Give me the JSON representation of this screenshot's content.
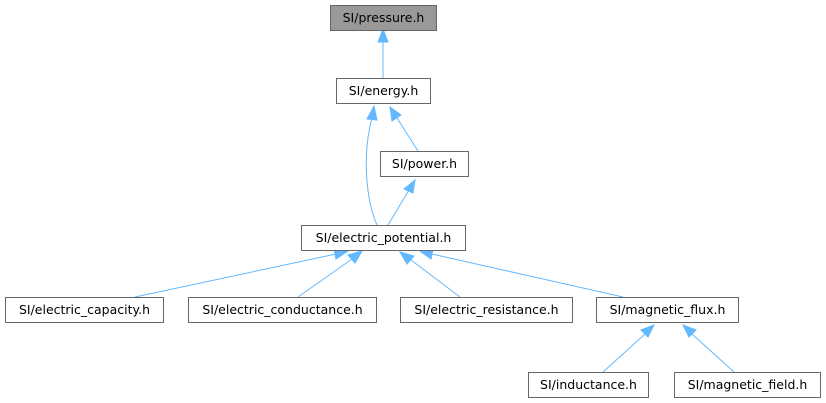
{
  "nodes": {
    "pressure": {
      "label": "SI/pressure.h"
    },
    "energy": {
      "label": "SI/energy.h"
    },
    "power": {
      "label": "SI/power.h"
    },
    "electric_potential": {
      "label": "SI/electric_potential.h"
    },
    "electric_capacity": {
      "label": "SI/electric_capacity.h"
    },
    "electric_conductance": {
      "label": "SI/electric_conductance.h"
    },
    "electric_resistance": {
      "label": "SI/electric_resistance.h"
    },
    "magnetic_flux": {
      "label": "SI/magnetic_flux.h"
    },
    "inductance": {
      "label": "SI/inductance.h"
    },
    "magnetic_field": {
      "label": "SI/magnetic_field.h"
    }
  },
  "highlighted_node": "pressure",
  "edges": [
    {
      "from": "energy",
      "to": "pressure"
    },
    {
      "from": "power",
      "to": "energy"
    },
    {
      "from": "electric_potential",
      "to": "energy"
    },
    {
      "from": "electric_potential",
      "to": "power"
    },
    {
      "from": "electric_capacity",
      "to": "electric_potential"
    },
    {
      "from": "electric_conductance",
      "to": "electric_potential"
    },
    {
      "from": "electric_resistance",
      "to": "electric_potential"
    },
    {
      "from": "magnetic_flux",
      "to": "electric_potential"
    },
    {
      "from": "inductance",
      "to": "magnetic_flux"
    },
    {
      "from": "magnetic_field",
      "to": "magnetic_flux"
    }
  ],
  "colors": {
    "edge": "#63b8ff",
    "node_border": "#666666",
    "highlight_fill": "#999999",
    "node_fill": "#ffffff"
  }
}
